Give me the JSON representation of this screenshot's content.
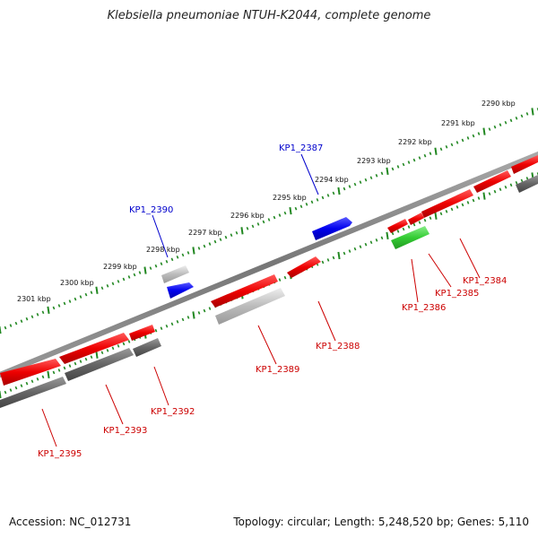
{
  "title": "Klebsiella pneumoniae NTUH-K2044, complete genome",
  "footer": {
    "accession": "Accession: NC_012731",
    "summary": "Topology: circular; Length: 5,248,520 bp; Genes: 5,110"
  },
  "ticks": [
    "2290 kbp",
    "2291 kbp",
    "2292 kbp",
    "2293 kbp",
    "2294 kbp",
    "2295 kbp",
    "2296 kbp",
    "2297 kbp",
    "2298 kbp",
    "2299 kbp",
    "2300 kbp",
    "2301 kbp"
  ],
  "colors": {
    "cds": "#ff0000",
    "cds_label": "#cc0000",
    "blue_gene": "#0000ff",
    "blue_label": "#0000cc",
    "green_gene": "#33cc33",
    "gray_dark": "#666666",
    "gray_light": "#bbbbbb",
    "axis": "#888888",
    "tick": "#228822"
  },
  "labels": {
    "forward": [
      "KP1_2387",
      "KP1_2390"
    ],
    "reverse": [
      "KP1_2384",
      "KP1_2385",
      "KP1_2386",
      "KP1_2388",
      "KP1_2389",
      "KP1_2392",
      "KP1_2393",
      "KP1_2395"
    ]
  }
}
